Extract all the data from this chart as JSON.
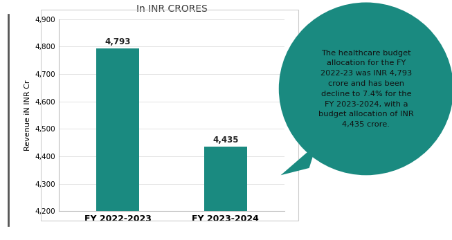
{
  "categories": [
    "FY 2022-2023",
    "FY 2023-2024"
  ],
  "values": [
    4793,
    4435
  ],
  "bar_color": "#1a8a80",
  "title": "In INR CRORES",
  "ylabel": "Revenue iN INR Cr",
  "ylim": [
    4200,
    4900
  ],
  "yticks": [
    4200,
    4300,
    4400,
    4500,
    4600,
    4700,
    4800,
    4900
  ],
  "bar_labels": [
    "4,793",
    "4,435"
  ],
  "background_color": "#ffffff",
  "chart_bg": "#ffffff",
  "bubble_text": "The healthcare budget\nallocation for the FY\n2022-23 was INR 4,793\ncrore and has been\ndecline to 7.4% for the\nFY 2023-2024, with a\nbudget allocation of INR\n4,435 crore.",
  "bubble_color": "#1a8a80",
  "bubble_text_color": "#111111"
}
